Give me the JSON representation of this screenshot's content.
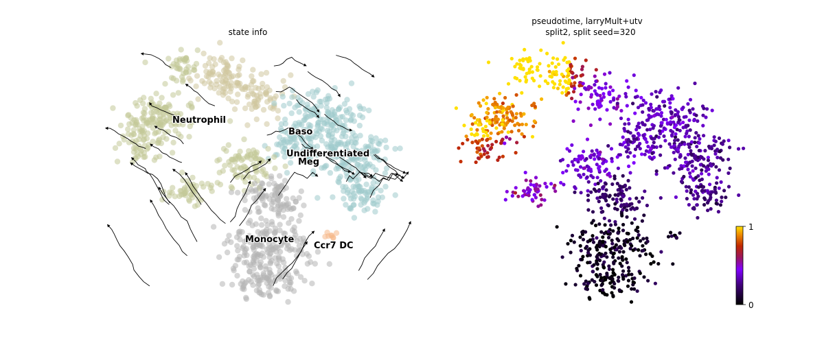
{
  "chart_data": [
    {
      "type": "scatter",
      "variant": "embedding-with-velocity-streamlines",
      "title": "state info",
      "axes_visible": false,
      "grid": false,
      "colors": {
        "Neutrophil": "#c2c998",
        "Undifferentiated": "#9ecacc",
        "Baso": "#9ecacc",
        "Meg": "#cfc79e",
        "Monocyte": "#b4b4b4",
        "Ccr7 DC": "#f5b889",
        "streamline": "#000000"
      },
      "cluster_labels": [
        {
          "name": "Neutrophil",
          "x": 0.23,
          "y": 0.74
        },
        {
          "name": "Baso",
          "x": 0.62,
          "y": 0.68
        },
        {
          "name": "Undifferentiated",
          "x": 0.7,
          "y": 0.6
        },
        {
          "name": "Meg",
          "x": 0.68,
          "y": 0.57
        },
        {
          "name": "Monocyte",
          "x": 0.5,
          "y": 0.24
        },
        {
          "name": "Ccr7 DC",
          "x": 0.78,
          "y": 0.22
        }
      ]
    },
    {
      "type": "scatter",
      "variant": "embedding-colored-by-value",
      "title": "pseudotime, larryMult+utv",
      "subtitle": "split2, split seed=320",
      "axes_visible": false,
      "grid": false,
      "colormap": "gnuplot",
      "colorbar": {
        "min": 0,
        "max": 1,
        "ticks": [
          "0",
          "1"
        ]
      },
      "colors": {
        "low": "#000000",
        "mid_low": "#5a00a0",
        "mid": "#8a00ff",
        "mid_high": "#c02000",
        "high": "#ffe000"
      }
    }
  ]
}
